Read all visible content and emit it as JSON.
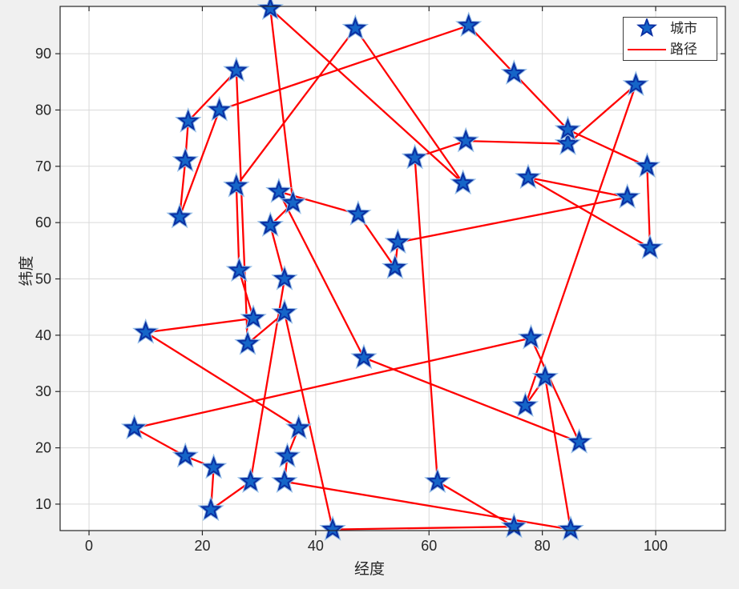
{
  "figure": {
    "background": "#f0f0f0",
    "plot_background": "#ffffff",
    "grid_color": "#d9d9d9",
    "axis_color": "#262626"
  },
  "chart_data": {
    "type": "scatter",
    "title": "",
    "xlabel": "经度",
    "ylabel": "纬度",
    "x_ticks": [
      0,
      20,
      40,
      60,
      80,
      100
    ],
    "y_ticks": [
      10,
      20,
      30,
      40,
      50,
      60,
      70,
      80,
      90
    ],
    "xlim": [
      -5.1,
      112.3
    ],
    "ylim": [
      5.3,
      98.4
    ],
    "grid": true,
    "legend_position": "top-right",
    "legend": [
      {
        "label": "城市",
        "marker": "star",
        "color": "#1565c8"
      },
      {
        "label": "路径",
        "marker": "line",
        "color": "#ff0000"
      }
    ],
    "marker_face": "#1565c8",
    "marker_edge": "#0a2fa2",
    "marker_halo": "#93bce6",
    "path_color": "#ff0000",
    "series": [
      {
        "name": "城市",
        "kind": "cities-as-stars"
      },
      {
        "name": "路径",
        "kind": "closed-tour-through-cities"
      }
    ],
    "tour_cities_in_route_order": [
      [
        32,
        98
      ],
      [
        66,
        67
      ],
      [
        47,
        94.5
      ],
      [
        26,
        66.5
      ],
      [
        26.5,
        51.5
      ],
      [
        29,
        43
      ],
      [
        10,
        40.5
      ],
      [
        37,
        23.5
      ],
      [
        35,
        18.5
      ],
      [
        34.5,
        14
      ],
      [
        85,
        5.5
      ],
      [
        80.5,
        32.5
      ],
      [
        77,
        27.5
      ],
      [
        96.5,
        84.5
      ],
      [
        84.5,
        74
      ],
      [
        66.5,
        74.5
      ],
      [
        57.5,
        71.5
      ],
      [
        61.5,
        14
      ],
      [
        75,
        6
      ],
      [
        43,
        5.5
      ],
      [
        34.5,
        44
      ],
      [
        28,
        38.5
      ],
      [
        26,
        87
      ],
      [
        17.5,
        78
      ],
      [
        17,
        71
      ],
      [
        16,
        61
      ],
      [
        23,
        80
      ],
      [
        67,
        95
      ],
      [
        75,
        86.5
      ],
      [
        84.5,
        76.5
      ],
      [
        98.5,
        70
      ],
      [
        99,
        55.5
      ],
      [
        77.5,
        68
      ],
      [
        95,
        64.5
      ],
      [
        54.5,
        56.5
      ],
      [
        54,
        52
      ],
      [
        47.5,
        61.5
      ],
      [
        33.5,
        65.5
      ],
      [
        48.5,
        36
      ],
      [
        86.5,
        21
      ],
      [
        78,
        39.5
      ],
      [
        8,
        23.5
      ],
      [
        17,
        18.5
      ],
      [
        22,
        16.5
      ],
      [
        21.5,
        9
      ],
      [
        28.5,
        14
      ],
      [
        34.5,
        50
      ],
      [
        32,
        59.5
      ],
      [
        36,
        63.5
      ]
    ],
    "tour_closed": true,
    "city_count": 49
  }
}
